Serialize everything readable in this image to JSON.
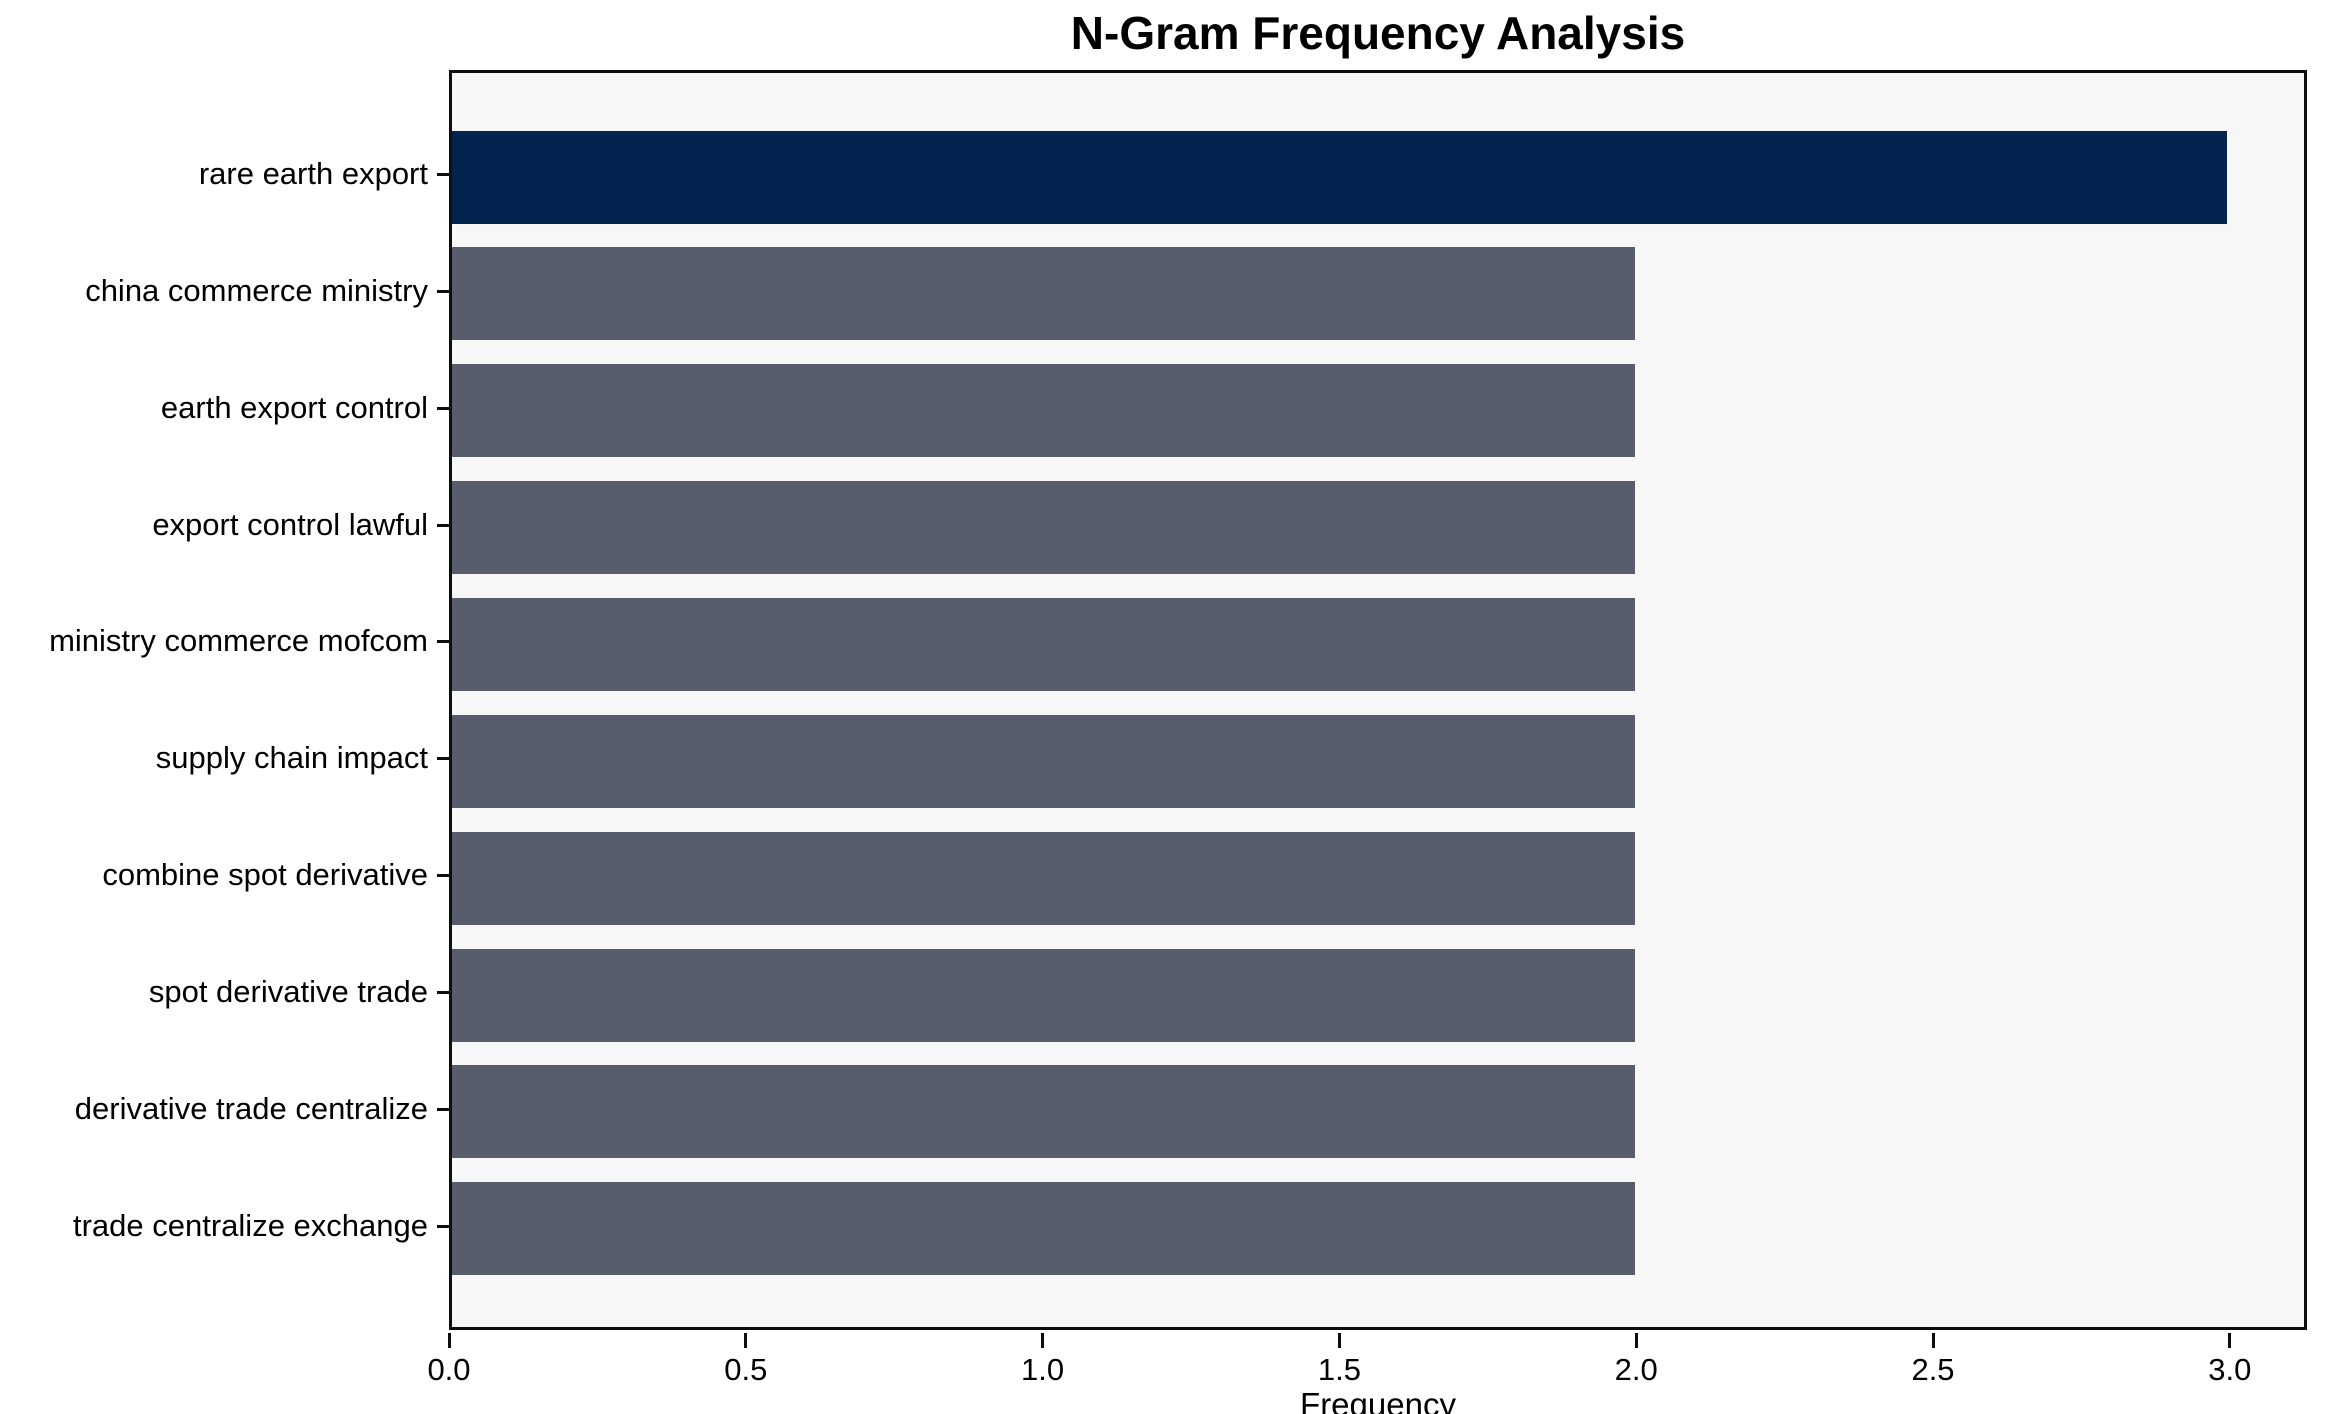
{
  "chart_data": {
    "type": "bar",
    "orientation": "horizontal",
    "title": "N-Gram Frequency Analysis",
    "xlabel": "Frequency",
    "ylabel": "",
    "categories": [
      "rare earth export",
      "china commerce ministry",
      "earth export control",
      "export control lawful",
      "ministry commerce mofcom",
      "supply chain impact",
      "combine spot derivative",
      "spot derivative trade",
      "derivative trade centralize",
      "trade centralize exchange"
    ],
    "values": [
      3,
      2,
      2,
      2,
      2,
      2,
      2,
      2,
      2,
      2
    ],
    "xlim": [
      0,
      3.13
    ],
    "x_ticks": [
      "0.0",
      "0.5",
      "1.0",
      "1.5",
      "2.0",
      "2.5",
      "3.0"
    ],
    "x_tick_values": [
      0,
      0.5,
      1.0,
      1.5,
      2.0,
      2.5,
      3.0
    ],
    "grid": false,
    "legend": null,
    "colors": {
      "highlight_bar": "#02234e",
      "default_bar": "#575d6c",
      "plot_background": "#f7f7f8",
      "frame": "#0e0e0e",
      "text": "#000000"
    }
  }
}
